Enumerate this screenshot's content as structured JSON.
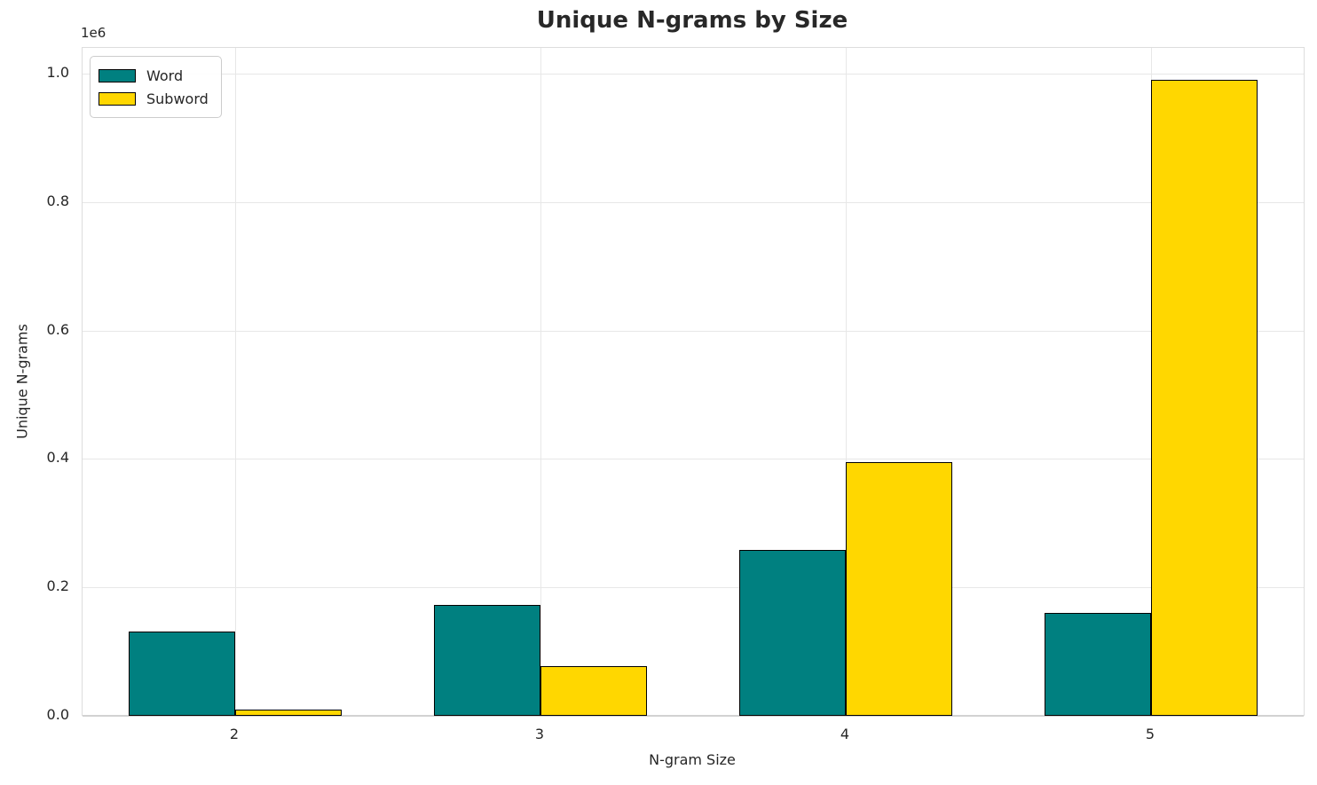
{
  "chart_data": {
    "type": "bar",
    "title": "Unique N-grams by Size",
    "xlabel": "N-gram Size",
    "ylabel": "Unique N-grams",
    "y_offset_text": "1e6",
    "categories": [
      "2",
      "3",
      "4",
      "5"
    ],
    "series": [
      {
        "name": "Word",
        "color": "#008080",
        "values": [
          131000,
          173000,
          258000,
          160000
        ]
      },
      {
        "name": "Subword",
        "color": "#FFD700",
        "values": [
          10000,
          78000,
          395000,
          990000
        ]
      }
    ],
    "bar_edge_color": "#000000",
    "ylim": [
      0,
      1040000
    ],
    "yticks": [
      {
        "value": 0,
        "label": "0.0"
      },
      {
        "value": 200000,
        "label": "0.2"
      },
      {
        "value": 400000,
        "label": "0.4"
      },
      {
        "value": 600000,
        "label": "0.6"
      },
      {
        "value": 800000,
        "label": "0.8"
      },
      {
        "value": 1000000,
        "label": "1.0"
      }
    ],
    "grid": "both",
    "legend_position": "upper left"
  }
}
